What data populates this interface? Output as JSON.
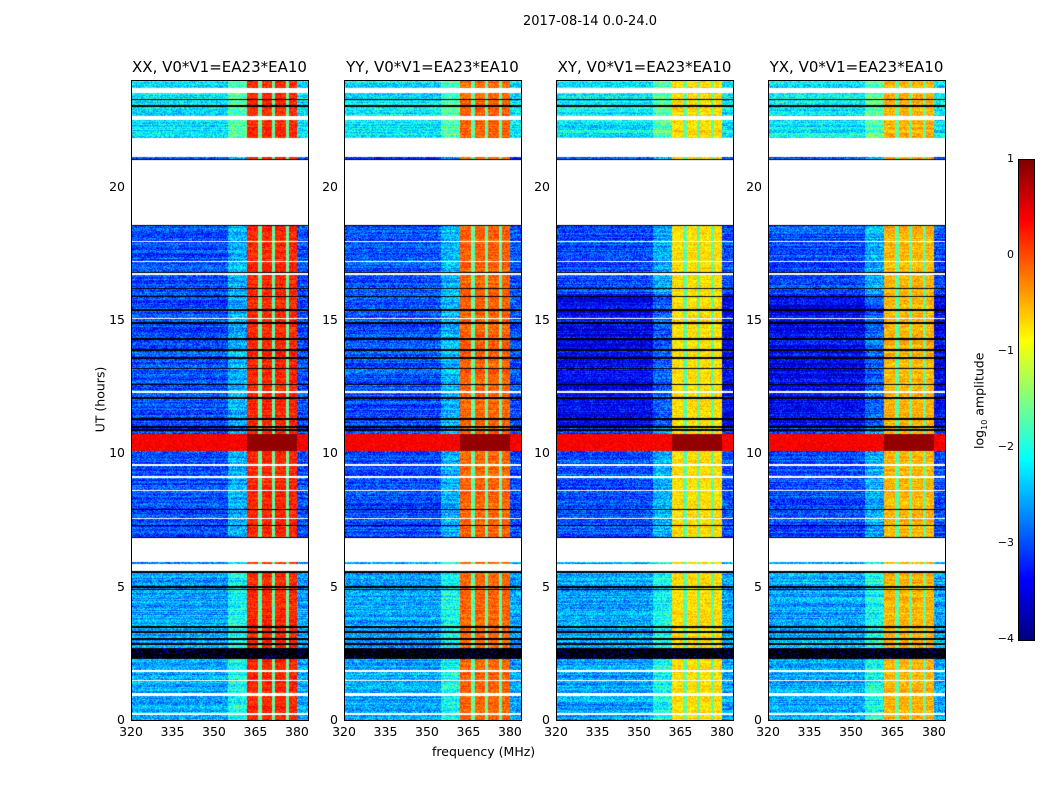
{
  "chart_data": {
    "type": "heatmap",
    "title": "2017-08-14 0.0-24.0",
    "xlabel": "frequency (MHz)",
    "ylabel": "UT (hours)",
    "xlim": [
      320,
      384
    ],
    "ylim": [
      0,
      24
    ],
    "xticks": [
      "320",
      "335",
      "350",
      "365",
      "380"
    ],
    "xtick_values": [
      320,
      335,
      350,
      365,
      380
    ],
    "yticks": [
      "0",
      "5",
      "10",
      "15",
      "20"
    ],
    "ytick_values": [
      0,
      5,
      10,
      15,
      20
    ],
    "colormap": "jet",
    "colorbar": {
      "label_main": "log",
      "label_sub": "10",
      "label_rest": " amplitude",
      "range": [
        -4,
        1
      ],
      "ticks": [
        "1",
        "0",
        "−1",
        "−2",
        "−3",
        "−4"
      ],
      "tick_values": [
        1,
        0,
        -1,
        -2,
        -3,
        -4
      ]
    },
    "panels": [
      {
        "title": "XX, V0*V1=EA23*EA10",
        "band_level": 0.2
      },
      {
        "title": "YY, V0*V1=EA23*EA10",
        "band_level": -0.1
      },
      {
        "title": "XY, V0*V1=EA23*EA10",
        "band_level": -0.7
      },
      {
        "title": "YX, V0*V1=EA23*EA10",
        "band_level": -0.5
      }
    ],
    "rfi_band_mhz": [
      362,
      380
    ],
    "band_gaps_mhz": [
      366.5,
      371.5,
      376.5
    ],
    "background_level": -3.0,
    "flagged_hours": [
      [
        18.6,
        21.05
      ],
      [
        21.15,
        21.85
      ],
      [
        22.55,
        22.7
      ],
      [
        23.55,
        23.75
      ],
      [
        5.95,
        6.85
      ],
      [
        5.6,
        5.85
      ],
      [
        0.2,
        0.27
      ],
      [
        0.9,
        1.0
      ],
      [
        1.45,
        1.52
      ],
      [
        1.8,
        1.88
      ],
      [
        7.55,
        7.6
      ],
      [
        8.6,
        8.65
      ],
      [
        9.1,
        9.15
      ],
      [
        9.55,
        9.6
      ],
      [
        12.3,
        12.35
      ],
      [
        15.05,
        15.1
      ],
      [
        16.7,
        16.8
      ],
      [
        17.2,
        17.25
      ],
      [
        17.95,
        18.0
      ]
    ],
    "black_line_hours": [
      21.05,
      19.3,
      18.6,
      16.8,
      16.2,
      15.9,
      15.4,
      14.9,
      14.3,
      13.9,
      13.6,
      13.2,
      12.6,
      12.1,
      11.3,
      11.0,
      10.9,
      7.9,
      7.3,
      6.85,
      5.55,
      5.0,
      4.9,
      3.5,
      3.3,
      3.05,
      2.85,
      22.6,
      23.05,
      23.3
    ],
    "dark_band_hours": [
      2.3,
      2.7
    ],
    "strong_band_hours": [
      10.1,
      10.75
    ]
  }
}
